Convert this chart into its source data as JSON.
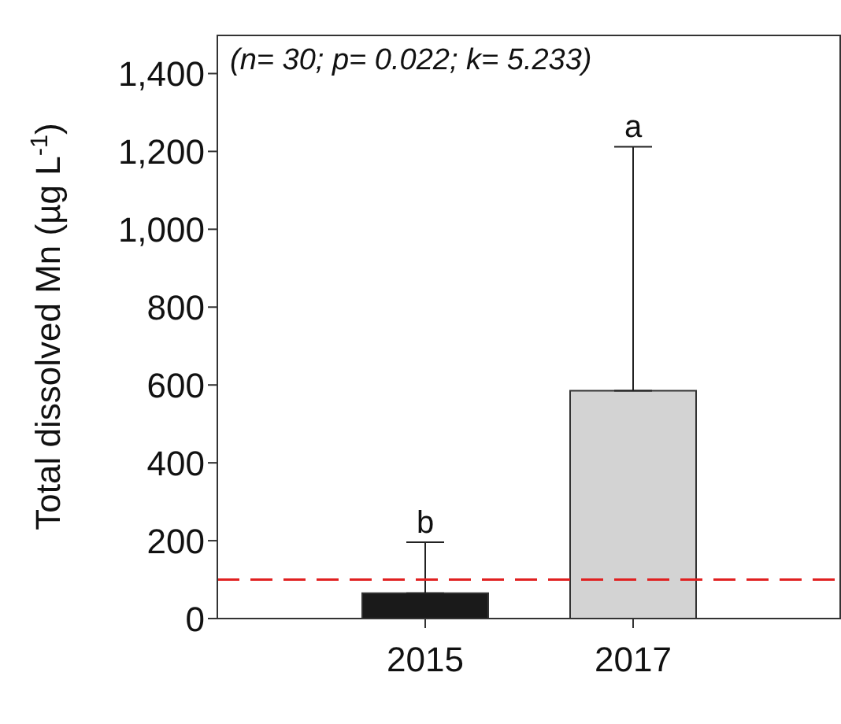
{
  "chart_data": {
    "type": "bar",
    "categories": [
      "2015",
      "2017"
    ],
    "values": [
      65,
      585
    ],
    "colors": [
      "#1a1a1a",
      "#d3d3d3"
    ],
    "errors": [
      [
        65,
        196
      ],
      [
        585,
        1212
      ]
    ],
    "ylabel": "Total dissolved Mn (µg L$^{-1}$)",
    "ylim": [
      0,
      1500
    ],
    "yticks": [
      0,
      200,
      400,
      600,
      800,
      {
        "value": 1000,
        "label": "1,000"
      },
      {
        "value": 1200,
        "label": "1,200"
      },
      {
        "value": 1400,
        "label": "1,400"
      }
    ],
    "grid": false,
    "legend": false,
    "ref_lines": [
      {
        "axis": "y",
        "value": 100,
        "color": "#e02020",
        "line_style": "dashed"
      }
    ],
    "annotations": [
      "(n= 30; p= 0.022; k= 5.233)",
      {
        "text": "b",
        "x": "2015",
        "y": 196
      },
      {
        "text": "a",
        "x": "2017",
        "y": 1212
      }
    ]
  }
}
